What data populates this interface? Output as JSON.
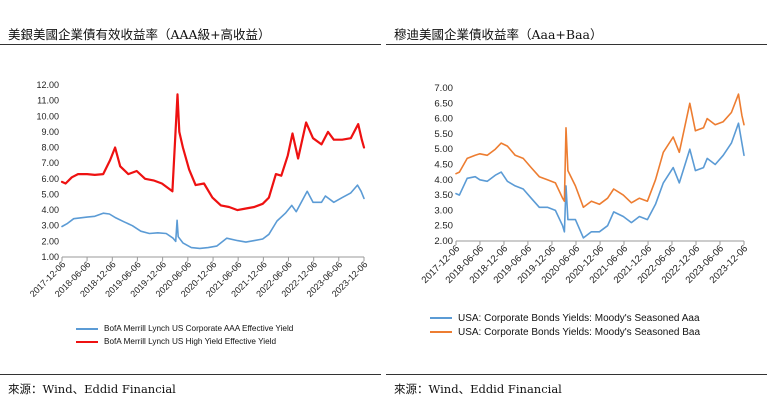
{
  "panels": [
    {
      "title": "美銀美國企業債有效收益率（AAA級+高收益）",
      "source": "來源：Wind、Eddid Financial"
    },
    {
      "title": "穆迪美國企業債收益率（Aaa+Baa）",
      "source": "來源：Wind、Eddid Financial"
    }
  ],
  "chart_data": [
    {
      "type": "line",
      "title": "美銀美國企業債有效收益率（AAA級+高收益）",
      "x_ticks": [
        "2017-12-06",
        "2018-06-06",
        "2018-12-06",
        "2019-06-06",
        "2019-12-06",
        "2020-06-06",
        "2020-12-06",
        "2021-06-06",
        "2021-12-06",
        "2022-06-06",
        "2022-12-06",
        "2023-06-06",
        "2023-12-06"
      ],
      "y_ticks": [
        "1.00",
        "2.00",
        "3.00",
        "4.00",
        "5.00",
        "6.00",
        "7.00",
        "8.00",
        "9.00",
        "10.00",
        "11.00",
        "12.00"
      ],
      "ylim": [
        1,
        12
      ],
      "x_range": [
        "2017-12-06",
        "2023-12-06"
      ],
      "grid": false,
      "legend_position": "bottom",
      "series": [
        {
          "name": "BofA Merrill Lynch US Corporate AAA Effective Yield",
          "color": "#5b9bd5",
          "points": [
            [
              "2017-12-06",
              2.95
            ],
            [
              "2018-01-15",
              3.15
            ],
            [
              "2018-03-01",
              3.45
            ],
            [
              "2018-04-15",
              3.5
            ],
            [
              "2018-06-06",
              3.55
            ],
            [
              "2018-08-01",
              3.6
            ],
            [
              "2018-10-01",
              3.8
            ],
            [
              "2018-11-15",
              3.75
            ],
            [
              "2019-01-01",
              3.5
            ],
            [
              "2019-03-01",
              3.25
            ],
            [
              "2019-05-01",
              3.0
            ],
            [
              "2019-07-01",
              2.65
            ],
            [
              "2019-09-01",
              2.5
            ],
            [
              "2019-11-01",
              2.55
            ],
            [
              "2020-01-01",
              2.5
            ],
            [
              "2020-02-20",
              2.2
            ],
            [
              "2020-03-10",
              2.0
            ],
            [
              "2020-03-20",
              3.35
            ],
            [
              "2020-03-28",
              2.3
            ],
            [
              "2020-05-01",
              1.9
            ],
            [
              "2020-07-01",
              1.6
            ],
            [
              "2020-09-01",
              1.55
            ],
            [
              "2020-11-01",
              1.6
            ],
            [
              "2021-01-01",
              1.7
            ],
            [
              "2021-03-15",
              2.2
            ],
            [
              "2021-06-01",
              2.05
            ],
            [
              "2021-08-01",
              1.95
            ],
            [
              "2021-10-01",
              2.05
            ],
            [
              "2021-12-01",
              2.15
            ],
            [
              "2022-01-15",
              2.45
            ],
            [
              "2022-03-15",
              3.3
            ],
            [
              "2022-05-15",
              3.8
            ],
            [
              "2022-06-30",
              4.3
            ],
            [
              "2022-08-01",
              3.9
            ],
            [
              "2022-10-20",
              5.2
            ],
            [
              "2022-12-01",
              4.5
            ],
            [
              "2023-02-01",
              4.5
            ],
            [
              "2023-03-01",
              4.9
            ],
            [
              "2023-05-01",
              4.5
            ],
            [
              "2023-07-01",
              4.8
            ],
            [
              "2023-09-01",
              5.1
            ],
            [
              "2023-10-20",
              5.6
            ],
            [
              "2023-11-15",
              5.2
            ],
            [
              "2023-12-06",
              4.75
            ]
          ]
        },
        {
          "name": "BofA Merrill Lynch US High Yield Effective Yield",
          "color": "#ee1111",
          "points": [
            [
              "2017-12-06",
              5.8
            ],
            [
              "2018-01-01",
              5.7
            ],
            [
              "2018-02-15",
              6.1
            ],
            [
              "2018-04-01",
              6.3
            ],
            [
              "2018-06-06",
              6.3
            ],
            [
              "2018-08-01",
              6.25
            ],
            [
              "2018-10-01",
              6.3
            ],
            [
              "2018-11-20",
              7.2
            ],
            [
              "2018-12-26",
              8.0
            ],
            [
              "2019-02-01",
              6.8
            ],
            [
              "2019-04-01",
              6.3
            ],
            [
              "2019-06-01",
              6.5
            ],
            [
              "2019-08-01",
              6.0
            ],
            [
              "2019-10-01",
              5.9
            ],
            [
              "2019-12-01",
              5.7
            ],
            [
              "2020-02-15",
              5.2
            ],
            [
              "2020-03-23",
              11.4
            ],
            [
              "2020-04-05",
              9.0
            ],
            [
              "2020-05-01",
              8.0
            ],
            [
              "2020-06-15",
              6.6
            ],
            [
              "2020-08-01",
              5.6
            ],
            [
              "2020-10-01",
              5.7
            ],
            [
              "2020-12-01",
              4.8
            ],
            [
              "2021-02-01",
              4.3
            ],
            [
              "2021-04-01",
              4.2
            ],
            [
              "2021-06-01",
              4.0
            ],
            [
              "2021-08-01",
              4.1
            ],
            [
              "2021-10-01",
              4.2
            ],
            [
              "2021-12-01",
              4.4
            ],
            [
              "2022-01-15",
              4.8
            ],
            [
              "2022-03-07",
              6.3
            ],
            [
              "2022-04-15",
              6.2
            ],
            [
              "2022-06-01",
              7.5
            ],
            [
              "2022-07-05",
              8.9
            ],
            [
              "2022-08-15",
              7.3
            ],
            [
              "2022-10-12",
              9.6
            ],
            [
              "2022-12-01",
              8.6
            ],
            [
              "2023-02-01",
              8.2
            ],
            [
              "2023-03-20",
              9.0
            ],
            [
              "2023-05-01",
              8.5
            ],
            [
              "2023-07-01",
              8.5
            ],
            [
              "2023-09-01",
              8.6
            ],
            [
              "2023-10-25",
              9.5
            ],
            [
              "2023-11-20",
              8.5
            ],
            [
              "2023-12-06",
              8.0
            ]
          ]
        }
      ]
    },
    {
      "type": "line",
      "title": "穆迪美國企業債收益率（Aaa+Baa）",
      "x_ticks": [
        "2017-12-06",
        "2018-06-06",
        "2018-12-06",
        "2019-06-06",
        "2019-12-06",
        "2020-06-06",
        "2020-12-06",
        "2021-06-06",
        "2021-12-06",
        "2022-06-06",
        "2022-12-06",
        "2023-06-06",
        "2023-12-06"
      ],
      "y_ticks": [
        "2.00",
        "2.50",
        "3.00",
        "3.50",
        "4.00",
        "4.50",
        "5.00",
        "5.50",
        "6.00",
        "6.50",
        "7.00"
      ],
      "ylim": [
        2,
        7
      ],
      "x_range": [
        "2017-12-06",
        "2023-12-06"
      ],
      "grid": false,
      "legend_position": "bottom",
      "series": [
        {
          "name": "USA: Corporate Bonds Yields: Moody's Seasoned Aaa",
          "color": "#5b9bd5",
          "points": [
            [
              "2017-12-06",
              3.55
            ],
            [
              "2018-01-01",
              3.5
            ],
            [
              "2018-03-01",
              4.05
            ],
            [
              "2018-05-01",
              4.1
            ],
            [
              "2018-06-06",
              4.0
            ],
            [
              "2018-08-01",
              3.95
            ],
            [
              "2018-10-01",
              4.15
            ],
            [
              "2018-11-15",
              4.25
            ],
            [
              "2019-01-01",
              3.95
            ],
            [
              "2019-03-01",
              3.8
            ],
            [
              "2019-05-01",
              3.7
            ],
            [
              "2019-07-01",
              3.4
            ],
            [
              "2019-09-01",
              3.1
            ],
            [
              "2019-11-01",
              3.1
            ],
            [
              "2020-01-01",
              3.0
            ],
            [
              "2020-02-25",
              2.5
            ],
            [
              "2020-03-10",
              2.3
            ],
            [
              "2020-03-22",
              3.8
            ],
            [
              "2020-04-05",
              2.7
            ],
            [
              "2020-06-01",
              2.7
            ],
            [
              "2020-08-01",
              2.1
            ],
            [
              "2020-10-01",
              2.3
            ],
            [
              "2020-12-01",
              2.3
            ],
            [
              "2021-02-01",
              2.5
            ],
            [
              "2021-03-20",
              2.95
            ],
            [
              "2021-06-01",
              2.8
            ],
            [
              "2021-08-01",
              2.6
            ],
            [
              "2021-10-01",
              2.8
            ],
            [
              "2021-12-01",
              2.7
            ],
            [
              "2022-02-01",
              3.2
            ],
            [
              "2022-04-01",
              3.9
            ],
            [
              "2022-06-15",
              4.4
            ],
            [
              "2022-08-01",
              3.9
            ],
            [
              "2022-10-20",
              5.0
            ],
            [
              "2022-12-01",
              4.3
            ],
            [
              "2023-02-01",
              4.4
            ],
            [
              "2023-03-01",
              4.7
            ],
            [
              "2023-05-01",
              4.5
            ],
            [
              "2023-07-01",
              4.8
            ],
            [
              "2023-09-01",
              5.2
            ],
            [
              "2023-10-25",
              5.85
            ],
            [
              "2023-11-20",
              5.2
            ],
            [
              "2023-12-06",
              4.8
            ]
          ]
        },
        {
          "name": "USA: Corporate Bonds Yields: Moody's Seasoned Baa",
          "color": "#ed7d31",
          "points": [
            [
              "2017-12-06",
              4.2
            ],
            [
              "2018-01-01",
              4.25
            ],
            [
              "2018-03-01",
              4.7
            ],
            [
              "2018-05-01",
              4.8
            ],
            [
              "2018-06-06",
              4.85
            ],
            [
              "2018-08-01",
              4.8
            ],
            [
              "2018-10-01",
              5.0
            ],
            [
              "2018-11-15",
              5.2
            ],
            [
              "2019-01-01",
              5.1
            ],
            [
              "2019-03-01",
              4.8
            ],
            [
              "2019-05-01",
              4.7
            ],
            [
              "2019-07-01",
              4.4
            ],
            [
              "2019-09-01",
              4.1
            ],
            [
              "2019-11-01",
              4.0
            ],
            [
              "2020-01-01",
              3.9
            ],
            [
              "2020-02-25",
              3.4
            ],
            [
              "2020-03-10",
              3.3
            ],
            [
              "2020-03-22",
              5.7
            ],
            [
              "2020-04-05",
              4.3
            ],
            [
              "2020-06-01",
              3.8
            ],
            [
              "2020-08-01",
              3.1
            ],
            [
              "2020-10-01",
              3.3
            ],
            [
              "2020-12-01",
              3.2
            ],
            [
              "2021-02-01",
              3.4
            ],
            [
              "2021-03-20",
              3.7
            ],
            [
              "2021-06-01",
              3.5
            ],
            [
              "2021-08-01",
              3.25
            ],
            [
              "2021-10-01",
              3.4
            ],
            [
              "2021-12-01",
              3.3
            ],
            [
              "2022-02-01",
              4.0
            ],
            [
              "2022-04-01",
              4.9
            ],
            [
              "2022-06-15",
              5.4
            ],
            [
              "2022-08-01",
              4.9
            ],
            [
              "2022-10-20",
              6.5
            ],
            [
              "2022-12-01",
              5.6
            ],
            [
              "2023-02-01",
              5.7
            ],
            [
              "2023-03-01",
              6.0
            ],
            [
              "2023-05-01",
              5.8
            ],
            [
              "2023-07-01",
              5.9
            ],
            [
              "2023-09-01",
              6.2
            ],
            [
              "2023-10-25",
              6.8
            ],
            [
              "2023-11-20",
              6.1
            ],
            [
              "2023-12-06",
              5.8
            ]
          ]
        }
      ]
    }
  ]
}
